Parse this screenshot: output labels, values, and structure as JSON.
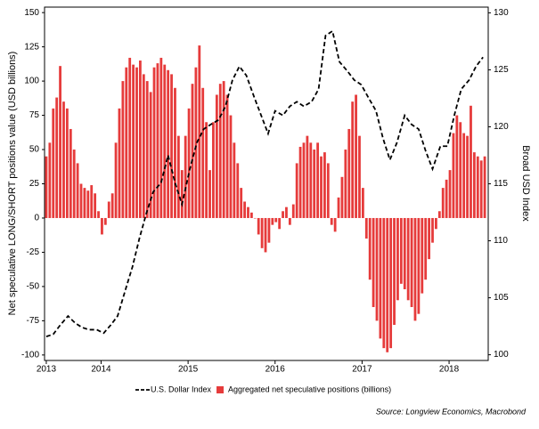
{
  "chart_data": {
    "type": "combo",
    "ylabel": "Net speculative LONG/SHORT positions value (USD billions)",
    "y2label": "Broad USD Index",
    "source": "Source: Longview Economics, Macrobond",
    "xlim": [
      2013.35,
      2018.45
    ],
    "xticks": [
      {
        "value": 2013.37,
        "label": "2013"
      },
      2014,
      2015,
      2016,
      2017,
      2018
    ],
    "ylim": [
      -104,
      154
    ],
    "yticks": [
      -100,
      -75,
      -50,
      -25,
      0,
      25,
      50,
      75,
      100,
      125,
      150
    ],
    "y2lim": [
      99.5,
      130.5
    ],
    "y2ticks": [
      100,
      105,
      110,
      115,
      120,
      125,
      130
    ],
    "series": [
      {
        "name": "U.S. Dollar Index",
        "type": "line",
        "axis": "y2",
        "color": "#000000",
        "x": [
          2013.37,
          2013.45,
          2013.53,
          2013.62,
          2013.7,
          2013.78,
          2013.86,
          2013.95,
          2014.03,
          2014.11,
          2014.19,
          2014.28,
          2014.36,
          2014.44,
          2014.52,
          2014.6,
          2014.69,
          2014.77,
          2014.85,
          2014.93,
          2015.02,
          2015.1,
          2015.18,
          2015.26,
          2015.35,
          2015.43,
          2015.51,
          2015.59,
          2015.67,
          2015.76,
          2015.84,
          2015.92,
          2016.0,
          2016.09,
          2016.17,
          2016.25,
          2016.33,
          2016.42,
          2016.5,
          2016.58,
          2016.66,
          2016.74,
          2016.83,
          2016.91,
          2016.99,
          2017.07,
          2017.16,
          2017.24,
          2017.32,
          2017.4,
          2017.49,
          2017.57,
          2017.65,
          2017.73,
          2017.81,
          2017.9,
          2017.98,
          2018.06,
          2018.14,
          2018.23,
          2018.31,
          2018.39
        ],
        "values": [
          101.6,
          101.8,
          102.6,
          103.4,
          102.8,
          102.4,
          102.2,
          102.2,
          101.9,
          102.6,
          103.4,
          105.7,
          107.7,
          110.2,
          112.4,
          114.3,
          115.1,
          117.5,
          115.1,
          113.2,
          116.3,
          118.6,
          119.8,
          120.2,
          120.6,
          121.8,
          124.1,
          125.3,
          124.5,
          122.6,
          121.0,
          119.4,
          121.4,
          121.0,
          121.8,
          122.2,
          121.8,
          122.2,
          123.3,
          128.0,
          128.4,
          125.7,
          124.9,
          124.1,
          123.7,
          122.6,
          121.4,
          119.0,
          117.1,
          118.6,
          121.0,
          120.2,
          119.8,
          117.9,
          116.3,
          118.3,
          118.3,
          121.0,
          123.3,
          124.1,
          125.3,
          126.1
        ]
      },
      {
        "name": "Aggregated net speculative positions (billions)",
        "type": "bar",
        "color": "#e63b3b",
        "x": [
          2013.37,
          2013.41,
          2013.45,
          2013.49,
          2013.53,
          2013.57,
          2013.61,
          2013.65,
          2013.69,
          2013.73,
          2013.77,
          2013.81,
          2013.85,
          2013.89,
          2013.93,
          2013.97,
          2014.01,
          2014.05,
          2014.09,
          2014.13,
          2014.17,
          2014.21,
          2014.25,
          2014.29,
          2014.33,
          2014.37,
          2014.41,
          2014.45,
          2014.49,
          2014.53,
          2014.57,
          2014.61,
          2014.65,
          2014.69,
          2014.73,
          2014.77,
          2014.81,
          2014.85,
          2014.89,
          2014.93,
          2014.97,
          2015.01,
          2015.05,
          2015.09,
          2015.13,
          2015.17,
          2015.21,
          2015.25,
          2015.29,
          2015.33,
          2015.37,
          2015.41,
          2015.45,
          2015.49,
          2015.53,
          2015.57,
          2015.61,
          2015.65,
          2015.69,
          2015.73,
          2015.77,
          2015.81,
          2015.85,
          2015.89,
          2015.93,
          2015.97,
          2016.01,
          2016.05,
          2016.09,
          2016.13,
          2016.17,
          2016.21,
          2016.25,
          2016.29,
          2016.33,
          2016.37,
          2016.41,
          2016.45,
          2016.49,
          2016.53,
          2016.57,
          2016.61,
          2016.65,
          2016.69,
          2016.73,
          2016.77,
          2016.81,
          2016.85,
          2016.89,
          2016.93,
          2016.97,
          2017.01,
          2017.05,
          2017.09,
          2017.13,
          2017.17,
          2017.21,
          2017.25,
          2017.29,
          2017.33,
          2017.37,
          2017.41,
          2017.45,
          2017.49,
          2017.53,
          2017.57,
          2017.61,
          2017.65,
          2017.69,
          2017.73,
          2017.77,
          2017.81,
          2017.85,
          2017.89,
          2017.93,
          2017.97,
          2018.01,
          2018.05,
          2018.09,
          2018.13,
          2018.17,
          2018.21,
          2018.25,
          2018.29,
          2018.33,
          2018.37,
          2018.41
        ],
        "values": [
          45,
          55,
          80,
          88,
          111,
          85,
          80,
          65,
          50,
          40,
          25,
          22,
          20,
          24,
          18,
          5,
          -12,
          -5,
          12,
          18,
          55,
          80,
          100,
          110,
          117,
          112,
          110,
          115,
          105,
          100,
          92,
          110,
          113,
          117,
          112,
          108,
          105,
          95,
          60,
          35,
          60,
          80,
          98,
          110,
          126,
          95,
          70,
          35,
          70,
          90,
          98,
          100,
          90,
          75,
          55,
          40,
          22,
          12,
          8,
          4,
          0,
          -12,
          -22,
          -25,
          -18,
          -5,
          -3,
          -8,
          5,
          8,
          -5,
          10,
          40,
          52,
          55,
          60,
          55,
          50,
          55,
          45,
          48,
          40,
          -5,
          -10,
          15,
          30,
          50,
          65,
          85,
          90,
          60,
          22,
          -15,
          -45,
          -65,
          -75,
          -88,
          -95,
          -98,
          -95,
          -78,
          -60,
          -48,
          -52,
          -60,
          -65,
          -75,
          -70,
          -55,
          -45,
          -30,
          -18,
          -8,
          5,
          22,
          28,
          35,
          62,
          75,
          70,
          62,
          60,
          82,
          48,
          45,
          42,
          45
        ]
      }
    ]
  }
}
